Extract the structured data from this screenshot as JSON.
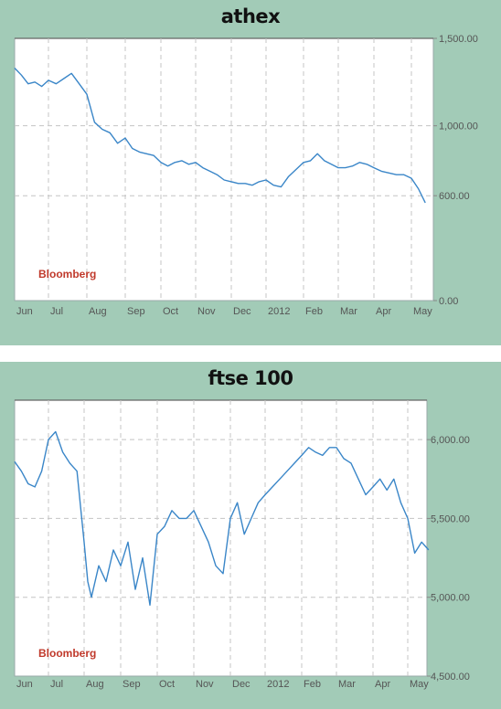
{
  "chart_data": [
    {
      "type": "line",
      "title": "athex",
      "source_label": "Bloomberg",
      "x_ticks": [
        "Jun",
        "Jul",
        "Aug",
        "Sep",
        "Oct",
        "Nov",
        "Dec",
        "2012",
        "Feb",
        "Mar",
        "Apr",
        "May"
      ],
      "y_ticks": [
        "0.00",
        "600.00",
        "1,000.00",
        "1,500.00"
      ],
      "ylim": [
        0,
        1500
      ],
      "grid": true,
      "line_color": "#3a86c8",
      "series": [
        {
          "x": [
            0,
            0.2,
            0.4,
            0.6,
            0.8,
            1.0,
            1.2,
            1.4,
            1.6,
            1.8,
            2.0,
            2.2,
            2.4,
            2.6,
            2.8,
            3.0,
            3.2,
            3.4,
            3.6,
            3.8,
            4.0,
            4.2,
            4.4,
            4.6,
            4.8,
            5.0,
            5.2,
            5.4,
            5.6,
            5.8,
            6.0,
            6.2,
            6.4,
            6.6,
            6.8,
            7.0,
            7.2,
            7.4,
            7.6,
            7.8,
            8.0,
            8.2,
            8.4,
            8.6,
            8.8,
            9.0,
            9.2,
            9.4,
            9.6,
            9.8,
            10.0,
            10.2,
            10.4,
            10.6,
            10.8,
            11.0,
            11.2,
            11.4
          ],
          "values": [
            1330,
            1290,
            1240,
            1250,
            1225,
            1260,
            1240,
            1270,
            1300,
            1240,
            1180,
            1020,
            980,
            960,
            900,
            930,
            870,
            850,
            840,
            830,
            790,
            770,
            790,
            800,
            780,
            790,
            760,
            740,
            720,
            690,
            680,
            670,
            670,
            660,
            680,
            690,
            660,
            650,
            710,
            750,
            790,
            800,
            840,
            800,
            780,
            760,
            760,
            770,
            790,
            780,
            760,
            740,
            730,
            720,
            720,
            700,
            640,
            560
          ]
        }
      ]
    },
    {
      "type": "line",
      "title": "ftse 100",
      "source_label": "Bloomberg",
      "x_ticks": [
        "Jun",
        "Jul",
        "Aug",
        "Sep",
        "Oct",
        "Nov",
        "Dec",
        "2012",
        "Feb",
        "Mar",
        "Apr",
        "May"
      ],
      "y_ticks": [
        "4,500.00",
        "5,000.00",
        "5,500.00",
        "6,000.00"
      ],
      "ylim": [
        4500,
        6250
      ],
      "grid": true,
      "line_color": "#3a86c8",
      "series": [
        {
          "x": [
            0,
            0.2,
            0.4,
            0.6,
            0.8,
            1.0,
            1.2,
            1.4,
            1.6,
            1.8,
            2.0,
            2.1,
            2.2,
            2.4,
            2.6,
            2.8,
            3.0,
            3.2,
            3.4,
            3.6,
            3.8,
            4.0,
            4.2,
            4.4,
            4.6,
            4.8,
            5.0,
            5.2,
            5.4,
            5.6,
            5.8,
            6.0,
            6.2,
            6.4,
            6.6,
            6.8,
            7.0,
            7.2,
            7.4,
            7.6,
            7.8,
            8.0,
            8.2,
            8.4,
            8.6,
            8.8,
            9.0,
            9.2,
            9.4,
            9.6,
            9.8,
            10.0,
            10.2,
            10.4,
            10.6,
            10.8,
            11.0,
            11.2,
            11.4,
            11.6
          ],
          "values": [
            5860,
            5800,
            5720,
            5700,
            5800,
            6000,
            6050,
            5920,
            5850,
            5800,
            5350,
            5100,
            5000,
            5200,
            5100,
            5300,
            5200,
            5350,
            5050,
            5250,
            4950,
            5400,
            5450,
            5550,
            5500,
            5500,
            5550,
            5450,
            5350,
            5200,
            5150,
            5500,
            5600,
            5400,
            5500,
            5600,
            5650,
            5700,
            5750,
            5800,
            5850,
            5900,
            5950,
            5920,
            5900,
            5950,
            5950,
            5880,
            5850,
            5750,
            5650,
            5700,
            5750,
            5680,
            5750,
            5600,
            5500,
            5280,
            5350,
            5300
          ]
        }
      ]
    }
  ]
}
